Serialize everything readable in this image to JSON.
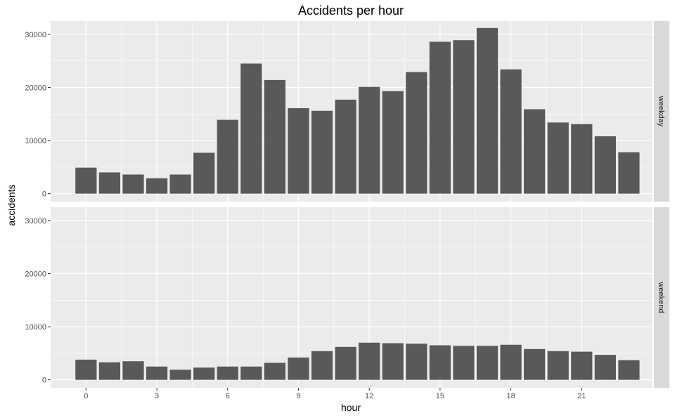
{
  "chart_data": {
    "type": "bar",
    "title": "Accidents per hour",
    "xlabel": "hour",
    "ylabel": "accidents",
    "x_ticks": [
      0,
      3,
      6,
      9,
      12,
      15,
      18,
      21
    ],
    "y_ticks": [
      0,
      10000,
      20000,
      30000
    ],
    "xlim": [
      -1.5,
      24
    ],
    "ylim": [
      -1500,
      32500
    ],
    "grid": true,
    "bar_color": "#595959",
    "panel_background": "#ebebeb",
    "strip_background": "#d9d9d9",
    "grid_color": "#ffffff",
    "categories": [
      0,
      1,
      2,
      3,
      4,
      5,
      6,
      7,
      8,
      9,
      10,
      11,
      12,
      13,
      14,
      15,
      16,
      17,
      18,
      19,
      20,
      21,
      22,
      23
    ],
    "facets": [
      {
        "label": "weekday",
        "values": [
          4900,
          4000,
          3600,
          2900,
          3600,
          7700,
          13900,
          24500,
          21400,
          16100,
          15600,
          17700,
          20100,
          19300,
          22900,
          28600,
          28900,
          31200,
          23400,
          15900,
          13400,
          13100,
          10800,
          7800
        ]
      },
      {
        "label": "weekend",
        "values": [
          3800,
          3300,
          3500,
          2500,
          1900,
          2300,
          2500,
          2500,
          3200,
          4200,
          5400,
          6200,
          7000,
          6900,
          6800,
          6500,
          6400,
          6400,
          6600,
          5800,
          5400,
          5300,
          4700,
          3700
        ]
      }
    ]
  }
}
